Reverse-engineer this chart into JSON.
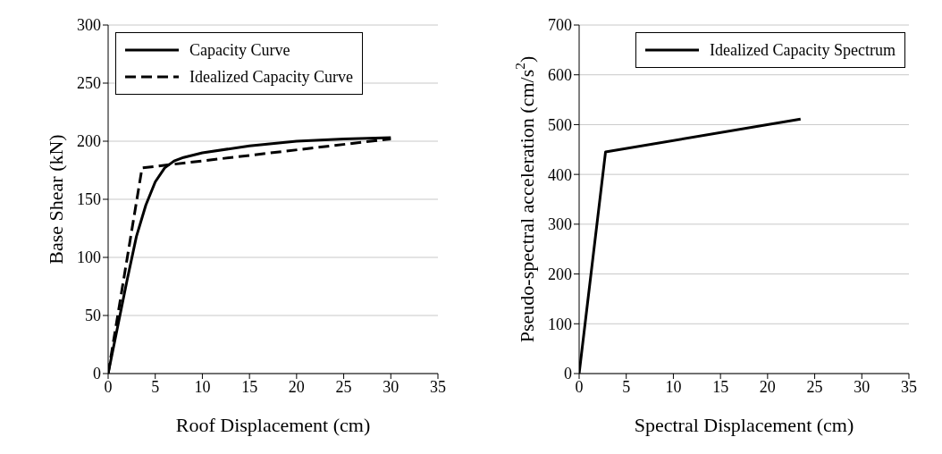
{
  "chart_data": [
    {
      "type": "line",
      "xlabel": "Roof Displacement (cm)",
      "ylabel": "Base Shear (kN)",
      "xlim": [
        0,
        35
      ],
      "xticks": [
        0,
        5,
        10,
        15,
        20,
        25,
        30,
        35
      ],
      "ylim": [
        0,
        300
      ],
      "yticks": [
        0,
        50,
        100,
        150,
        200,
        250,
        300
      ],
      "grid": "y",
      "legend": "top left",
      "marker": "none",
      "series": [
        {
          "name": "Capacity Curve",
          "color": "#000000",
          "line_style": "solid",
          "x": [
            0,
            1,
            2,
            3,
            4,
            5,
            6,
            7,
            8,
            10,
            15,
            20,
            25,
            30
          ],
          "values": [
            0,
            40,
            80,
            118,
            145,
            165,
            177,
            183,
            186,
            190,
            196,
            200,
            202,
            203
          ]
        },
        {
          "name": "Idealized Capacity Curve",
          "color": "#000000",
          "line_style": "dashed",
          "x": [
            0,
            3.6,
            30
          ],
          "values": [
            0,
            177,
            202
          ]
        }
      ]
    },
    {
      "type": "line",
      "xlabel": "Spectral Displacement (cm)",
      "ylabel": "Pseudo-spectral acceleration (cm/s$^{2}$)",
      "xlim": [
        0,
        35
      ],
      "xticks": [
        0,
        5,
        10,
        15,
        20,
        25,
        30,
        35
      ],
      "ylim": [
        0,
        700
      ],
      "yticks": [
        0,
        100,
        200,
        300,
        400,
        500,
        600,
        700
      ],
      "grid": "y",
      "legend": "top right",
      "marker": "none",
      "series": [
        {
          "name": "Idealized Capacity Spectrum",
          "color": "#000000",
          "line_style": "solid",
          "x": [
            0,
            2.8,
            23.5
          ],
          "values": [
            0,
            445,
            511
          ]
        }
      ]
    }
  ]
}
